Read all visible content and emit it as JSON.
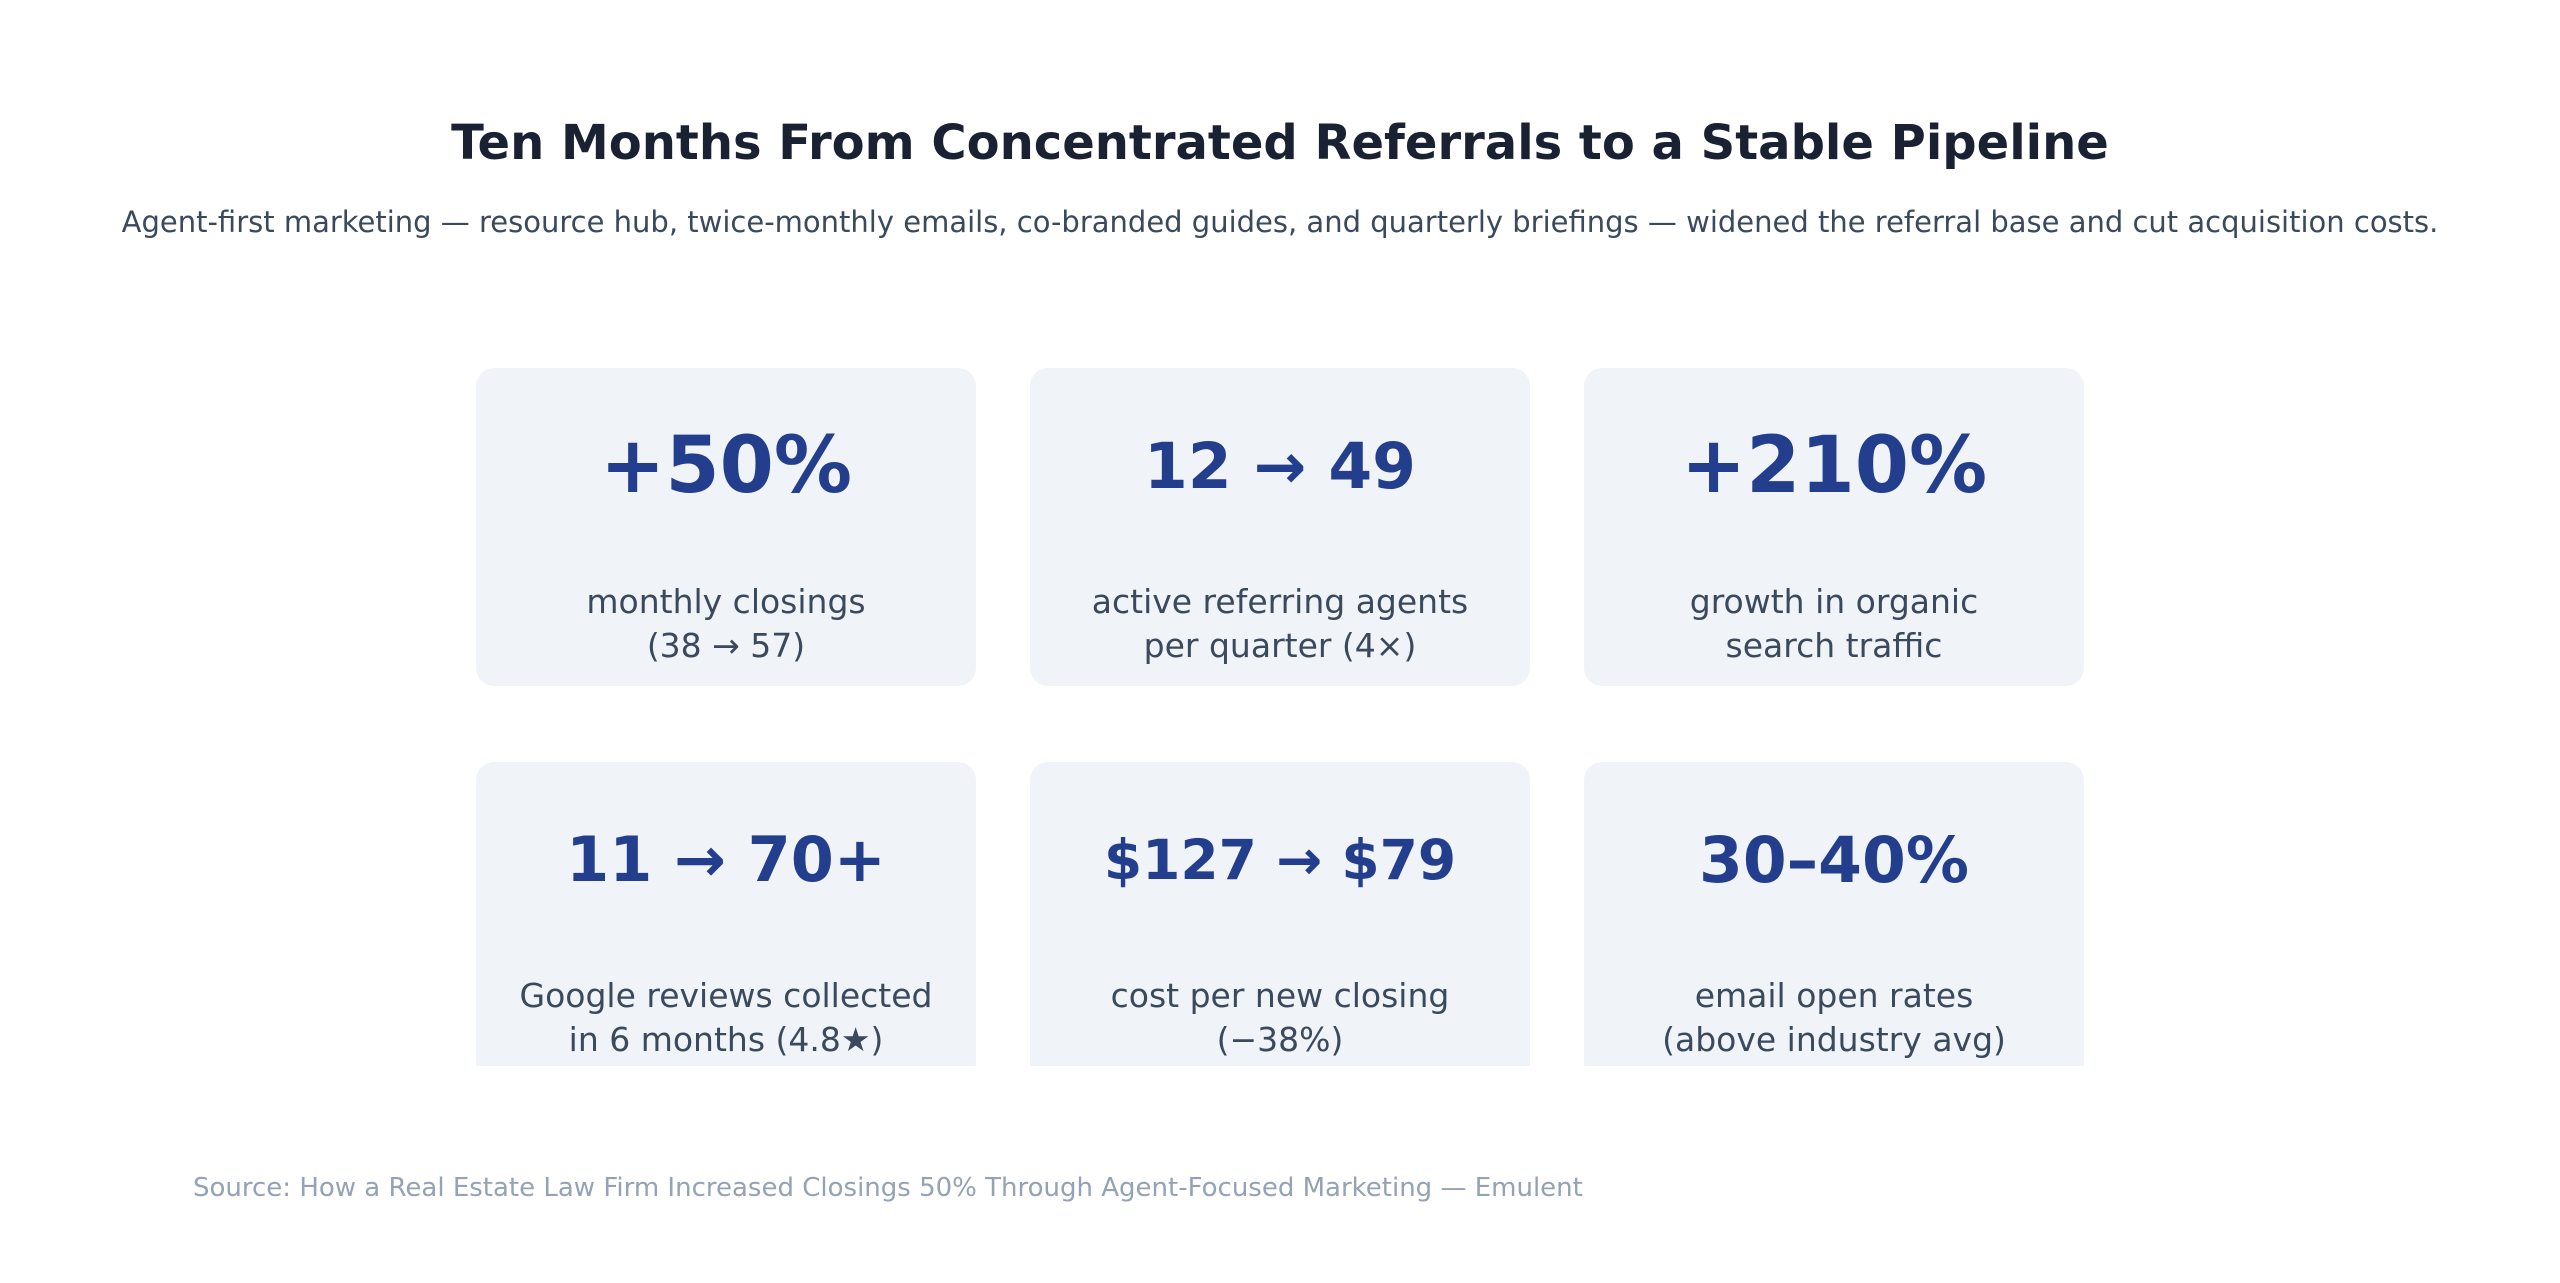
{
  "header": {
    "title": "Ten Months From Concentrated Referrals to a Stable Pipeline",
    "subtitle": "Agent-first marketing — resource hub, twice-monthly emails, co-branded guides, and quarterly briefings — widened the referral base and cut acquisition costs."
  },
  "stats": [
    {
      "value": "+50%",
      "label_line1": "monthly closings",
      "label_line2": "(38 → 57)"
    },
    {
      "value": "12 → 49",
      "label_line1": "active referring agents",
      "label_line2": "per quarter (4×)"
    },
    {
      "value": "+210%",
      "label_line1": "growth in organic",
      "label_line2": "search traffic"
    },
    {
      "value": "11 → 70+",
      "label_line1": "Google reviews collected",
      "label_line2": "in 6 months (4.8★)"
    },
    {
      "value": "$127 → $79",
      "label_line1": "cost per new closing",
      "label_line2": "(−38%)"
    },
    {
      "value": "30–40%",
      "label_line1": "email open rates",
      "label_line2": "(above industry avg)"
    }
  ],
  "footer": {
    "source": "Source: How a Real Estate Law Firm Increased Closings 50% Through Agent-Focused Marketing — Emulent"
  },
  "colors": {
    "background": "#ffffff",
    "card_background": "#f0f3f8",
    "stat_number_blue": "#233e8c",
    "title_navy": "#192133",
    "body_slate": "#3a495c",
    "source_gray": "#95a1b5"
  },
  "chart_data": {
    "type": "table",
    "title": "Ten Months From Concentrated Referrals to a Stable Pipeline",
    "subtitle": "Agent-first marketing — resource hub, twice-monthly emails, co-branded guides, and quarterly briefings — widened the referral base and cut acquisition costs.",
    "source": "Source: How a Real Estate Law Firm Increased Closings 50% Through Agent-Focused Marketing — Emulent",
    "layout": "3x2 grid of stat cards, second row clipped at bottom edge",
    "stats": [
      {
        "headline": "+50%",
        "description": "monthly closings (38 → 57)",
        "from": 38,
        "to": 57,
        "change_pct": 50
      },
      {
        "headline": "12 → 49",
        "description": "active referring agents per quarter (4×)",
        "from": 12,
        "to": 49,
        "multiple": 4
      },
      {
        "headline": "+210%",
        "description": "growth in organic search traffic",
        "change_pct": 210
      },
      {
        "headline": "11 → 70+",
        "description": "Google reviews collected in 6 months (4.8★)",
        "from": 11,
        "to": 70,
        "rating": 4.8
      },
      {
        "headline": "$127 → $79",
        "description": "cost per new closing (−38%)",
        "from": 127,
        "to": 79,
        "change_pct": -38
      },
      {
        "headline": "30–40%",
        "description": "email open rates (above industry avg)",
        "range_low_pct": 30,
        "range_high_pct": 40
      }
    ]
  }
}
